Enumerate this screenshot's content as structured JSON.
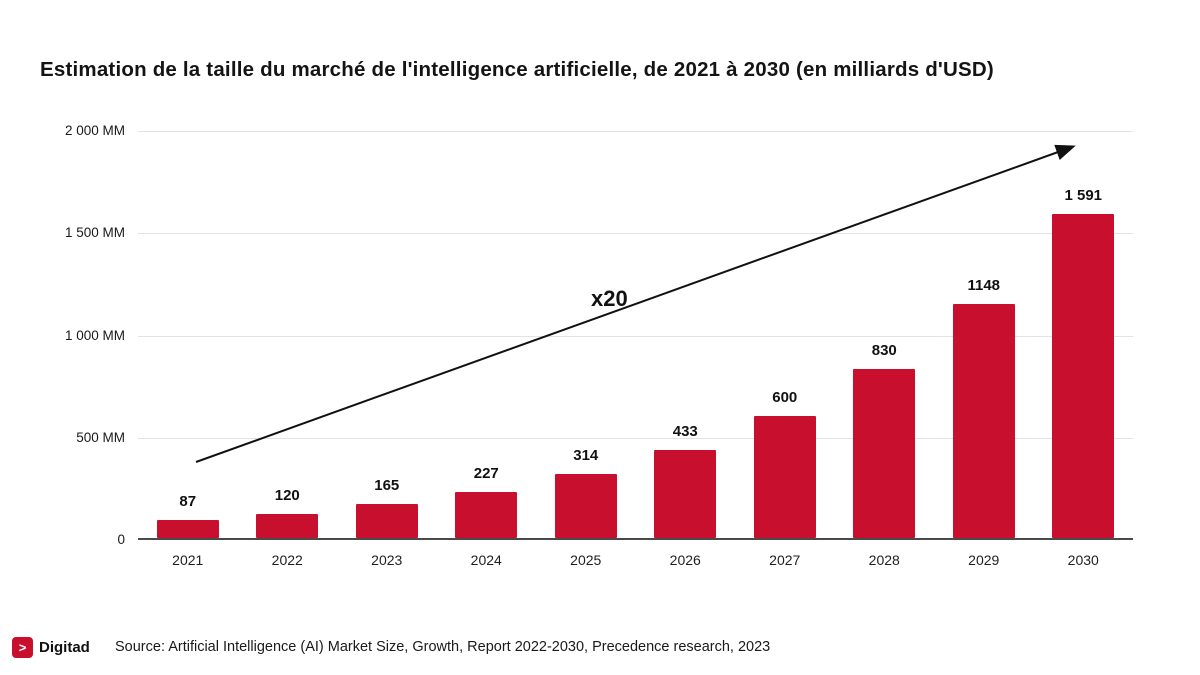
{
  "title": "Estimation de la taille du marché de l'intelligence artificielle, de 2021 à 2030 (en milliards d'USD)",
  "chart_data": {
    "type": "bar",
    "title": "Estimation de la taille du marché de l'intelligence artificielle, de 2021 à 2030 (en milliards d'USD)",
    "categories": [
      "2021",
      "2022",
      "2023",
      "2024",
      "2025",
      "2026",
      "2027",
      "2028",
      "2029",
      "2030"
    ],
    "values": [
      87,
      120,
      165,
      227,
      314,
      433,
      600,
      830,
      1148,
      1591
    ],
    "value_labels": [
      "87",
      "120",
      "165",
      "227",
      "314",
      "433",
      "600",
      "830",
      "1148",
      "1 591"
    ],
    "xlabel": "",
    "ylabel": "",
    "ylim": [
      0,
      2000
    ],
    "y_ticks": [
      {
        "value": 2000,
        "label": "2 000 MM"
      },
      {
        "value": 1500,
        "label": "1 500 MM"
      },
      {
        "value": 1000,
        "label": "1 000 MM"
      },
      {
        "value": 500,
        "label": "500 MM"
      },
      {
        "value": 0,
        "label": "0"
      }
    ],
    "grid": true,
    "legend": "none",
    "bar_color": "#c8102e",
    "annotation": {
      "text": "x20",
      "arrow": true
    }
  },
  "colors": {
    "bar": "#c8102e",
    "accent": "#c8102e",
    "gridline": "#e3e3e3",
    "text": "#111111"
  },
  "footer": {
    "logo_text": "Digitad",
    "logo_glyph": ">",
    "source": "Source: Artificial Intelligence (AI) Market Size, Growth, Report 2022-2030, Precedence research, 2023"
  }
}
